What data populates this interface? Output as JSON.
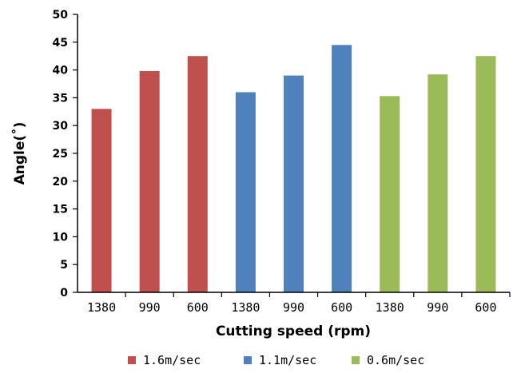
{
  "chart_data": {
    "type": "bar",
    "xlabel": "Cutting speed (rpm)",
    "ylabel": "Angle(˚)",
    "ylim": [
      0,
      50
    ],
    "ytick_step": 5,
    "grid": false,
    "legend_position": "bottom",
    "categories": [
      "1380",
      "990",
      "600",
      "1380",
      "990",
      "600",
      "1380",
      "990",
      "600"
    ],
    "values": [
      33,
      39.8,
      42.5,
      36,
      39,
      44.5,
      35.3,
      39.2,
      42.5
    ],
    "bar_series_index": [
      0,
      0,
      0,
      1,
      1,
      1,
      2,
      2,
      2
    ],
    "series": [
      {
        "name": "1.6m/sec",
        "color": "#c0504d"
      },
      {
        "name": "1.1m/sec",
        "color": "#4f81bd"
      },
      {
        "name": "0.6m/sec",
        "color": "#9bbb59"
      }
    ]
  }
}
